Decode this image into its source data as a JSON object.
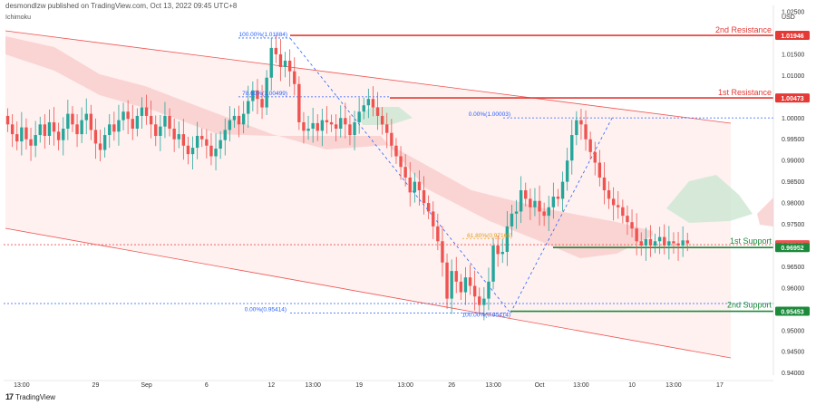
{
  "header": {
    "published": "desmondlzw published on TradingView.com, Oct 13, 2022 09:45 UTC+8",
    "indicator": "Ichimoku",
    "currency": "USD",
    "brand": "TradingView",
    "brand_logo": "17"
  },
  "colors": {
    "bull": "#26a69a",
    "bear": "#ef5350",
    "resistance": "#e53935",
    "support": "#1b8a3a",
    "fib": "#2962ff",
    "cloud_bear": "#f8c9c9",
    "cloud_bull": "#cfe8d3",
    "channel_fill": "#fdeceb"
  },
  "chart_data": {
    "type": "candlestick",
    "ylim": [
      0.9395,
      1.0265
    ],
    "y_ticks": [
      "1.02500",
      "1.02000",
      "1.01500",
      "1.01000",
      "1.00500",
      "1.00000",
      "0.99500",
      "0.99000",
      "0.98500",
      "0.98000",
      "0.97500",
      "0.97000",
      "0.96500",
      "0.96000",
      "0.95500",
      "0.95000",
      "0.94500",
      "0.94000"
    ],
    "y_tick_values": [
      1.025,
      1.02,
      1.015,
      1.01,
      1.005,
      1.0,
      0.995,
      0.99,
      0.985,
      0.98,
      0.975,
      0.97,
      0.965,
      0.96,
      0.955,
      0.95,
      0.945,
      0.94
    ],
    "x_ticks": [
      {
        "label": "13:00",
        "bar": 3
      },
      {
        "label": "29",
        "bar": 19
      },
      {
        "label": "Sep",
        "bar": 30
      },
      {
        "label": "6",
        "bar": 43
      },
      {
        "label": "12",
        "bar": 57
      },
      {
        "label": "13:00",
        "bar": 66
      },
      {
        "label": "19",
        "bar": 76
      },
      {
        "label": "13:00",
        "bar": 86
      },
      {
        "label": "26",
        "bar": 96
      },
      {
        "label": "13:00",
        "bar": 105
      },
      {
        "label": "Oct",
        "bar": 115
      },
      {
        "label": "13:00",
        "bar": 124
      },
      {
        "label": "10",
        "bar": 135
      },
      {
        "label": "13:00",
        "bar": 144
      },
      {
        "label": "17",
        "bar": 154
      }
    ],
    "candles_close": [
      0.9985,
      0.9962,
      0.9945,
      0.9978,
      0.995,
      0.9935,
      0.996,
      0.9985,
      0.9958,
      0.999,
      0.9968,
      0.9948,
      0.9975,
      1.001,
      0.9985,
      0.9962,
      0.9995,
      1.001,
      0.9972,
      0.994,
      0.9925,
      0.996,
      0.9985,
      0.9968,
      0.9995,
      1.0015,
      0.9998,
      0.9975,
      1.0005,
      1.0025,
      1.0005,
      0.9985,
      0.9958,
      0.998,
      1.0005,
      0.9975,
      0.995,
      0.9962,
      0.9935,
      0.9915,
      0.993,
      0.9958,
      0.995,
      0.9935,
      0.991,
      0.9928,
      0.9948,
      0.9972,
      0.9995,
      1.0005,
      0.9985,
      1.001,
      1.004,
      1.0065,
      1.0045,
      1.0025,
      1.0095,
      1.0165,
      1.015,
      1.012,
      1.0135,
      1.011,
      1.008,
      0.999,
      0.997,
      0.9975,
      0.9988,
      0.997,
      0.9995,
      0.999,
      0.9985,
      0.9975,
      1.0,
      0.9985,
      0.996,
      0.999,
      1.0015,
      1.003,
      1.0045,
      1.0025,
      1.0005,
      0.9985,
      0.9965,
      0.9935,
      0.991,
      0.9885,
      0.986,
      0.9825,
      0.985,
      0.983,
      0.98,
      0.978,
      0.9745,
      0.971,
      0.966,
      0.9575,
      0.964,
      0.9615,
      0.959,
      0.9625,
      0.9605,
      0.958,
      0.956,
      0.9575,
      0.9615,
      0.97,
      0.968,
      0.9685,
      0.9745,
      0.9775,
      0.978,
      0.983,
      0.981,
      0.979,
      0.9805,
      0.978,
      0.977,
      0.979,
      0.9815,
      0.981,
      0.985,
      0.99,
      0.996,
      0.9995,
      0.9985,
      0.995,
      0.992,
      0.9895,
      0.986,
      0.983,
      0.981,
      0.9795,
      0.979,
      0.977,
      0.9755,
      0.974,
      0.971,
      0.97,
      0.9715,
      0.97,
      0.971,
      0.972,
      0.97,
      0.971,
      0.9705,
      0.97,
      0.9712,
      0.9705
    ],
    "resistance_2": {
      "label": "2nd Resistance",
      "value_label": "1.01946",
      "value": 1.01946
    },
    "resistance_1": {
      "label": "1st Resistance",
      "value_label": "1.00473",
      "value": 1.00473
    },
    "support_1": {
      "label": "1st Support",
      "value_label": "0.96952",
      "value": 0.96952
    },
    "support_2": {
      "label": "2nd Support",
      "value_label": "0.95453",
      "value": 0.95453
    },
    "last_price": {
      "value_label": "0.97019",
      "value": 0.97019
    },
    "fib_labels": [
      {
        "text": "100.00%(1.01884)",
        "value": 1.01884
      },
      {
        "text": "78.60%(1.00499)",
        "value": 1.00499
      },
      {
        "text": "0.00%(1.00003)",
        "value": 1.00003
      },
      {
        "text": "61.80%(0.97165)",
        "value": 0.97165
      },
      {
        "text": "0.00%(0.95414)",
        "value": 0.95414
      },
      {
        "text": "100.00%(0.95414)",
        "value": 0.95414
      }
    ]
  }
}
